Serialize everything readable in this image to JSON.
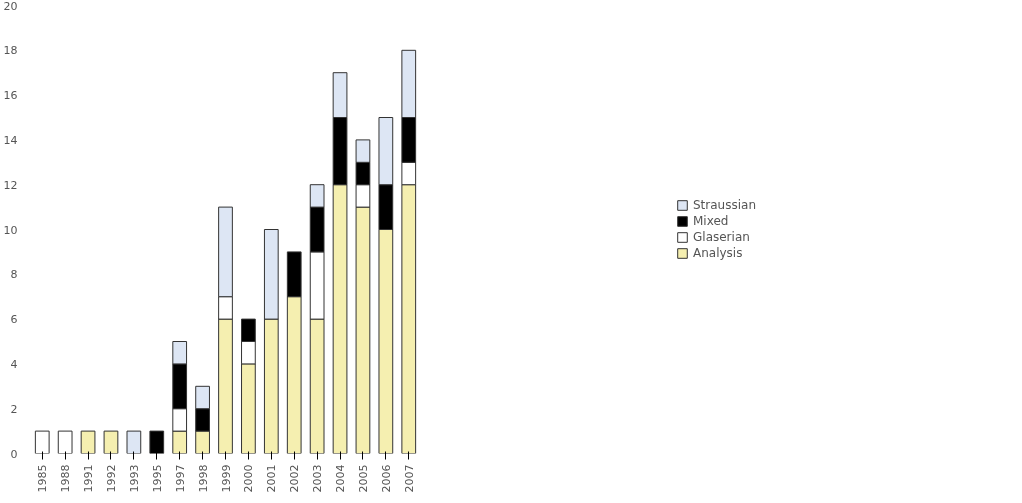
{
  "chart_data": {
    "type": "bar",
    "stacked": true,
    "categories": [
      "1985",
      "1988",
      "1991",
      "1992",
      "1993",
      "1995",
      "1997",
      "1998",
      "1999",
      "2000",
      "2001",
      "2002",
      "2003",
      "2004",
      "2005",
      "2006",
      "2007"
    ],
    "series": [
      {
        "name": "Analysis",
        "color": "#f5efb0",
        "values": [
          0,
          0,
          1,
          1,
          0,
          0,
          1,
          1,
          6,
          4,
          6,
          7,
          6,
          12,
          11,
          10,
          12
        ]
      },
      {
        "name": "Glaserian",
        "color": "#ffffff",
        "values": [
          1,
          1,
          0,
          0,
          0,
          0,
          1,
          0,
          1,
          1,
          0,
          0,
          3,
          0,
          1,
          0,
          1
        ]
      },
      {
        "name": "Mixed",
        "color": "#000000",
        "values": [
          0,
          0,
          0,
          0,
          0,
          1,
          2,
          1,
          0,
          1,
          0,
          2,
          2,
          3,
          1,
          2,
          2
        ]
      },
      {
        "name": "Straussian",
        "color": "#dde6f4",
        "values": [
          0,
          0,
          0,
          0,
          1,
          0,
          1,
          1,
          4,
          0,
          4,
          0,
          1,
          2,
          1,
          3,
          3
        ]
      }
    ],
    "ylim": [
      0,
      20
    ],
    "yticks": [
      0,
      2,
      4,
      6,
      8,
      10,
      12,
      14,
      16,
      18,
      20
    ],
    "grid": false,
    "legend": "right"
  }
}
